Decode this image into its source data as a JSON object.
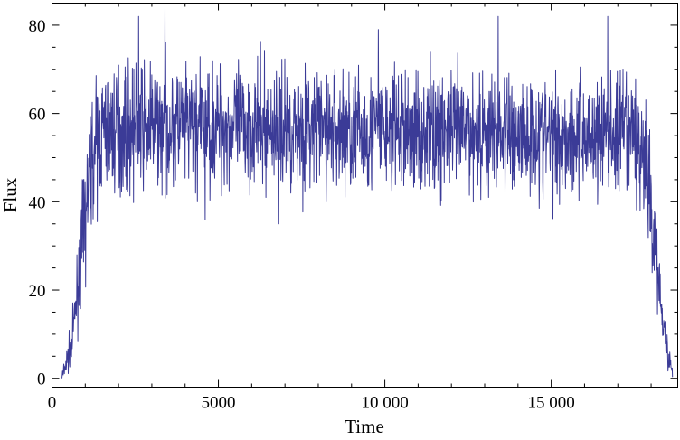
{
  "chart_data": {
    "type": "line",
    "xlabel": "Time",
    "ylabel": "Flux",
    "xlim": [
      0,
      18800
    ],
    "ylim": [
      -2,
      85
    ],
    "xticks": [
      0,
      5000,
      10000,
      15000
    ],
    "xtick_labels": [
      "0",
      "5000",
      "10 000",
      "15 000"
    ],
    "yticks": [
      0,
      20,
      40,
      60,
      80
    ],
    "ytick_labels": [
      "0",
      "20",
      "40",
      "60",
      "80"
    ],
    "grid": false,
    "series": [
      {
        "color": "#3b3b97",
        "trend": [
          [
            300,
            0
          ],
          [
            600,
            8
          ],
          [
            900,
            30
          ],
          [
            1200,
            50
          ],
          [
            1500,
            56
          ],
          [
            3000,
            57
          ],
          [
            6000,
            57
          ],
          [
            9000,
            56
          ],
          [
            12000,
            56
          ],
          [
            15000,
            55
          ],
          [
            17500,
            55
          ],
          [
            17800,
            50
          ],
          [
            18200,
            25
          ],
          [
            18500,
            5
          ],
          [
            18650,
            1
          ]
        ],
        "noise_amplitude": 8,
        "spikes": [
          [
            2600,
            82
          ],
          [
            3400,
            84
          ],
          [
            9800,
            79
          ],
          [
            13400,
            82
          ],
          [
            16700,
            82
          ],
          [
            6800,
            35
          ],
          [
            4600,
            36
          ]
        ]
      }
    ]
  }
}
